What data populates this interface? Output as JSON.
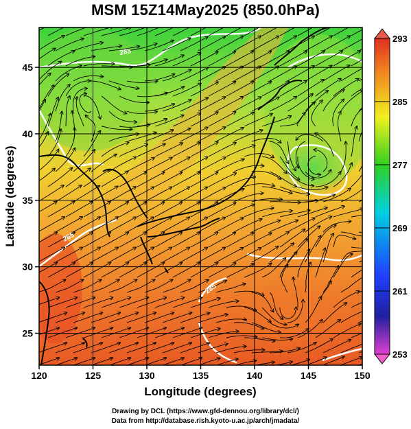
{
  "title": "MSM 15Z14May2025 (850.0hPa)",
  "map": {
    "lon_range": [
      120,
      150
    ],
    "lat_range": [
      22.6,
      48
    ],
    "x_ticks": [
      120,
      125,
      130,
      135,
      140,
      145,
      150
    ],
    "y_ticks": [
      25,
      30,
      35,
      40,
      45
    ],
    "xlabel": "Longitude (degrees)",
    "ylabel": "Latitude  (degrees)",
    "grid": true,
    "field": "temperature",
    "contour_labels": [
      "285",
      "285",
      "285"
    ]
  },
  "colorbar": {
    "ticks": [
      293,
      285,
      277,
      269,
      261,
      253
    ],
    "min": 253,
    "max": 293,
    "colors": {
      "magenta": "#e040d0",
      "blue": "#2040ff",
      "cyan": "#00d0e0",
      "green": "#30d020",
      "yellow": "#f0f020",
      "orange": "#f08020",
      "red": "#e03020"
    }
  },
  "credits": {
    "line1": "Drawing by DCL (https://www.gfd-dennou.org/library/dcl/)",
    "line2": "Data from http://database.rish.kyoto-u.ac.jp/arch/jmadata/"
  }
}
